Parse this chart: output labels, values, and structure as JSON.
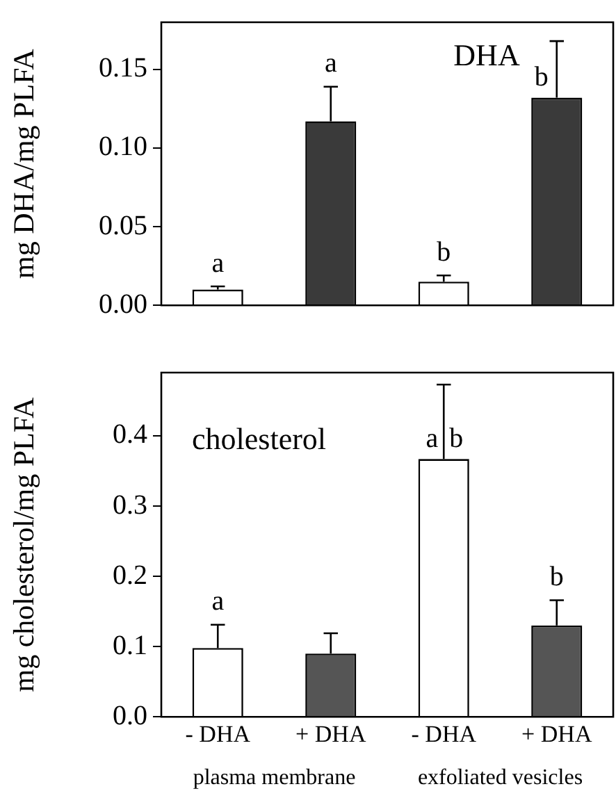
{
  "chart_data": [
    {
      "type": "bar",
      "title": "DHA",
      "ylabel": "mg DHA/mg PLFA",
      "categories": [
        null,
        null,
        null,
        null
      ],
      "values": [
        0.01,
        0.117,
        0.015,
        0.132
      ],
      "errors": [
        0.002,
        0.022,
        0.004,
        0.036
      ],
      "colors": [
        "#ffffff",
        "#3a3a3a",
        "#ffffff",
        "#3a3a3a"
      ],
      "ylim": [
        0,
        0.18
      ],
      "yticks": [
        {
          "value": 0,
          "label": "0.00"
        },
        {
          "value": 0.05,
          "label": "0.05"
        },
        {
          "value": 0.1,
          "label": "0.10"
        },
        {
          "value": 0.15,
          "label": "0.15"
        }
      ],
      "grid": false,
      "legend": false,
      "value_labels": [
        "a",
        "a",
        "b",
        "b"
      ]
    },
    {
      "type": "bar",
      "title": "cholesterol",
      "ylabel": "mg cholesterol/mg PLFA",
      "categories": [
        "- DHA",
        "+ DHA",
        "- DHA",
        "+ DHA"
      ],
      "values": [
        0.098,
        0.09,
        0.367,
        0.13
      ],
      "errors": [
        0.033,
        0.029,
        0.106,
        0.036
      ],
      "colors": [
        "#ffffff",
        "#555555",
        "#ffffff",
        "#555555"
      ],
      "ylim": [
        0,
        0.49
      ],
      "yticks": [
        {
          "value": 0,
          "label": "0.0"
        },
        {
          "value": 0.1,
          "label": "0.1"
        },
        {
          "value": 0.2,
          "label": "0.2"
        },
        {
          "value": 0.3,
          "label": "0.3"
        },
        {
          "value": 0.4,
          "label": "0.4"
        }
      ],
      "grid": false,
      "legend": false,
      "value_labels": [
        "a",
        null,
        "a b",
        "b"
      ],
      "annotations": [
        "plasma membrane",
        "exfoliated vesicles"
      ]
    }
  ]
}
